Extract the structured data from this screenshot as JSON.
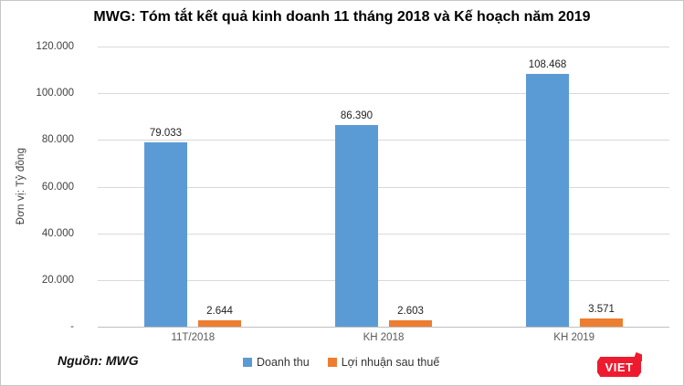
{
  "title": "MWG: Tóm tắt kết quả kinh doanh 11 tháng 2018 và Kế hoạch năm 2019",
  "y_axis": {
    "title": "Đơn vị: Tỷ đồng",
    "ticks": [
      "120.000",
      "100.000",
      "80.000",
      "60.000",
      "40.000",
      "20.000",
      "-"
    ],
    "max": 120000,
    "min": 0
  },
  "source": "Nguồn: MWG",
  "logo": {
    "text": "VIET",
    "color": "#ee1b2e"
  },
  "legend": [
    {
      "key": "doanh-thu",
      "label": "Doanh thu",
      "color": "#5b9bd5"
    },
    {
      "key": "loi-nhuan-sau-thue",
      "label": "Lợi nhuận sau thuế",
      "color": "#ed7d31"
    }
  ],
  "chart_data": {
    "type": "bar",
    "title": "MWG: Tóm tắt kết quả kinh doanh 11 tháng 2018 và Kế hoạch năm 2019",
    "categories": [
      "11T/2018",
      "KH 2018",
      "KH 2019"
    ],
    "category_keys": [
      "11t-2018",
      "kh-2018",
      "kh-2019"
    ],
    "series": [
      {
        "key": "doanh-thu",
        "name": "Doanh thu",
        "color": "#5b9bd5",
        "values": [
          79033,
          86390,
          108468
        ],
        "labels": [
          "79.033",
          "86.390",
          "108.468"
        ]
      },
      {
        "key": "loi-nhuan-sau-thue",
        "name": "Lợi nhuận sau thuế",
        "color": "#ed7d31",
        "values": [
          2644,
          2603,
          3571
        ],
        "labels": [
          "2.644",
          "2.603",
          "3.571"
        ]
      }
    ],
    "xlabel": "",
    "ylabel": "Đơn vị: Tỷ đồng",
    "ylim": [
      0,
      120000
    ],
    "grid": true,
    "legend_position": "bottom"
  }
}
